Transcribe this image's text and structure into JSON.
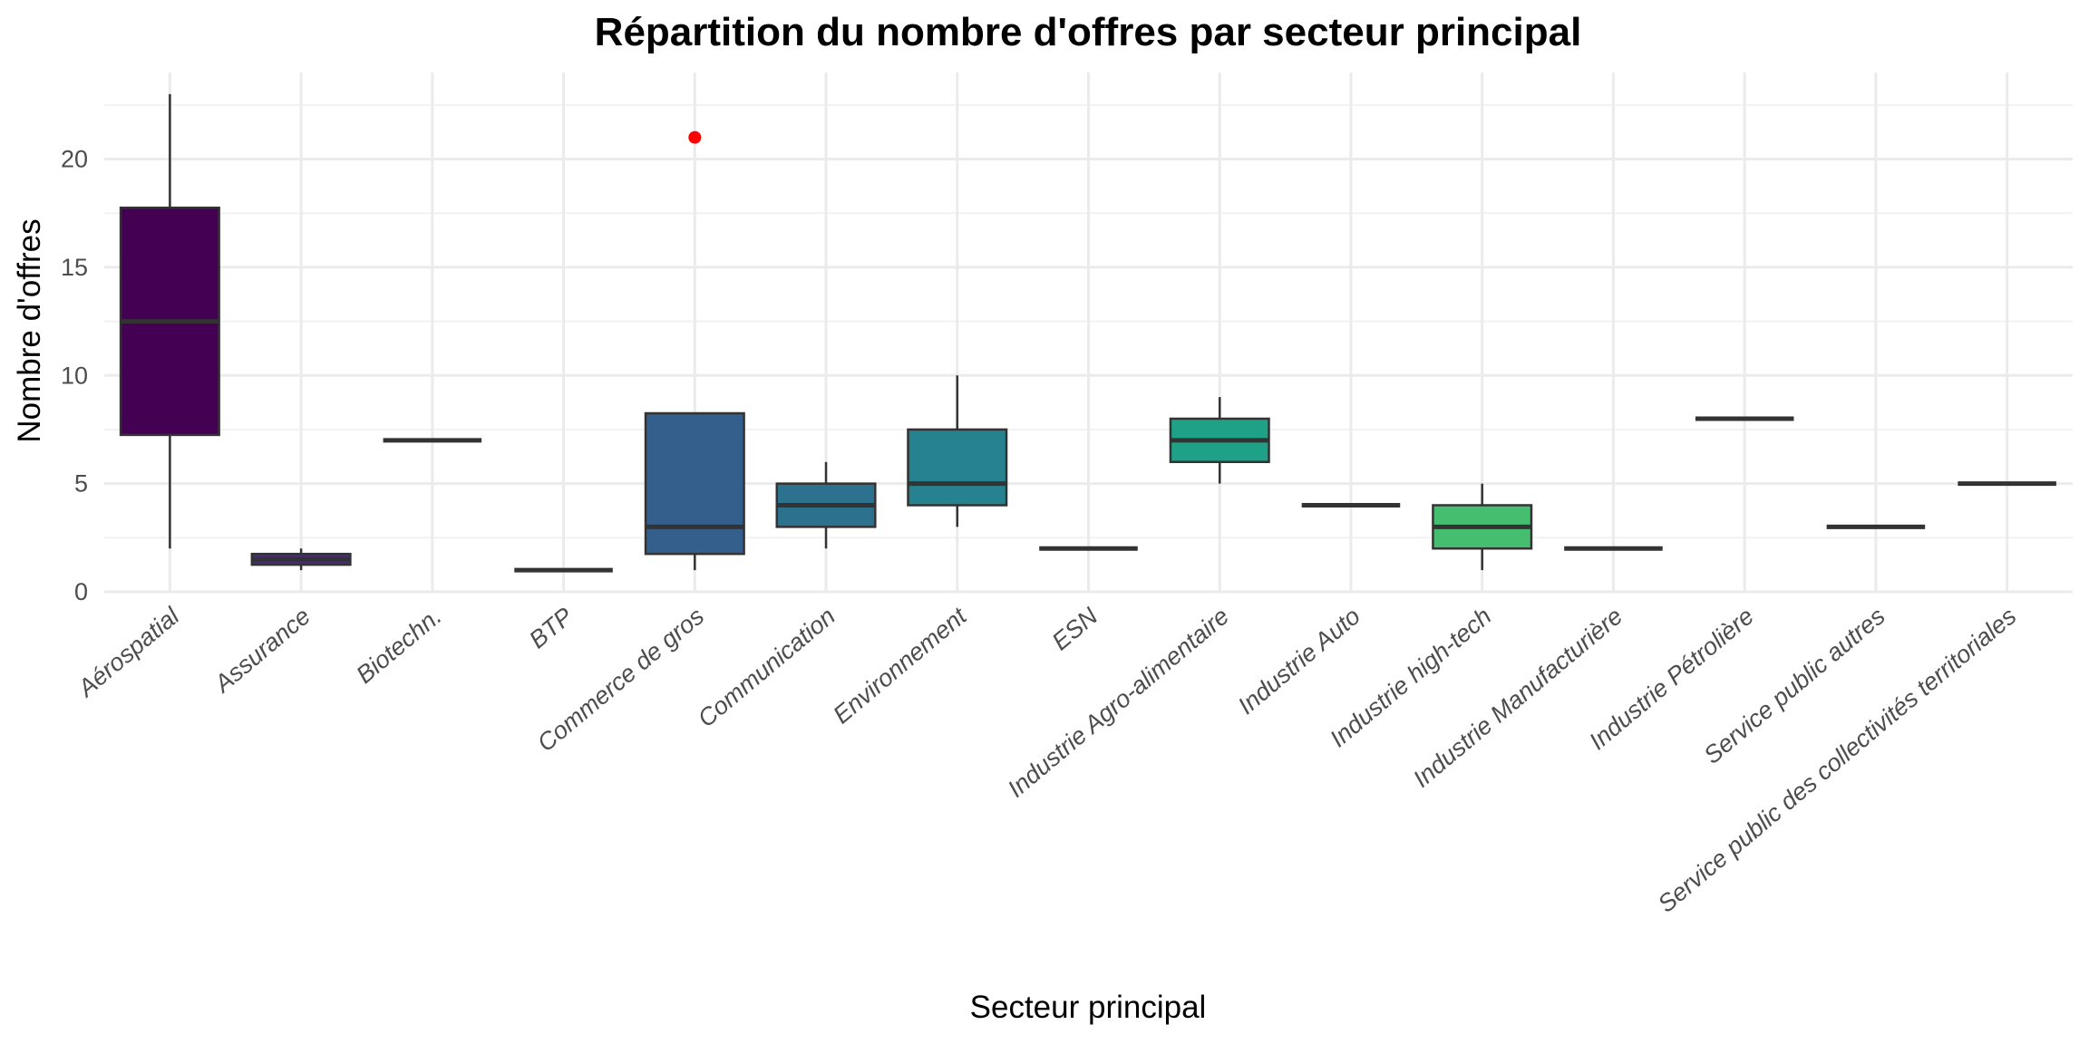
{
  "chart_data": {
    "type": "boxplot",
    "title": "Répartition du nombre d'offres par secteur principal",
    "xlabel": "Secteur principal",
    "ylabel": "Nombre d'offres",
    "ylim": [
      0,
      24
    ],
    "yticks": [
      0,
      5,
      10,
      15,
      20
    ],
    "grid": true,
    "legend": "none",
    "categories": [
      "Aérospatial",
      "Assurance",
      "Biotechn.",
      "BTP",
      "Commerce de gros",
      "Communication",
      "Environnement",
      "ESN",
      "Industrie Agro-alimentaire",
      "Industrie Auto",
      "Industrie high-tech",
      "Industrie Manufacturière",
      "Industrie Pétrolière",
      "Service public autres",
      "Service public des collectivités territoriales"
    ],
    "boxes": [
      {
        "category": "Aérospatial",
        "min": 2,
        "q1": 7.25,
        "median": 12.5,
        "q3": 17.75,
        "max": 23,
        "outliers": [],
        "color": "#440154"
      },
      {
        "category": "Assurance",
        "min": 1,
        "q1": 1.25,
        "median": 1.5,
        "q3": 1.75,
        "max": 2,
        "outliers": [],
        "color": "#472D7B"
      },
      {
        "category": "Biotechn.",
        "min": 7,
        "q1": 7,
        "median": 7,
        "q3": 7,
        "max": 7,
        "outliers": [],
        "color": "#3B528B"
      },
      {
        "category": "BTP",
        "min": 1,
        "q1": 1,
        "median": 1,
        "q3": 1,
        "max": 1,
        "outliers": [],
        "color": "#3B528B"
      },
      {
        "category": "Commerce de gros",
        "min": 1,
        "q1": 1.75,
        "median": 3,
        "q3": 8.25,
        "max": 8.25,
        "outliers": [
          21
        ],
        "color": "#345F8D"
      },
      {
        "category": "Communication",
        "min": 2,
        "q1": 3,
        "median": 4,
        "q3": 5,
        "max": 6,
        "outliers": [],
        "color": "#2C728E"
      },
      {
        "category": "Environnement",
        "min": 3,
        "q1": 4,
        "median": 5,
        "q3": 7.5,
        "max": 10,
        "outliers": [],
        "color": "#26828E"
      },
      {
        "category": "ESN",
        "min": 2,
        "q1": 2,
        "median": 2,
        "q3": 2,
        "max": 2,
        "outliers": [],
        "color": "#21908C"
      },
      {
        "category": "Industrie Agro-alimentaire",
        "min": 5,
        "q1": 6,
        "median": 7,
        "q3": 8,
        "max": 9,
        "outliers": [],
        "color": "#1FA187"
      },
      {
        "category": "Industrie Auto",
        "min": 4,
        "q1": 4,
        "median": 4,
        "q3": 4,
        "max": 4,
        "outliers": [],
        "color": "#28AE80"
      },
      {
        "category": "Industrie high-tech",
        "min": 1,
        "q1": 2,
        "median": 3,
        "q3": 4,
        "max": 5,
        "outliers": [],
        "color": "#45BF6F"
      },
      {
        "category": "Industrie Manufacturière",
        "min": 2,
        "q1": 2,
        "median": 2,
        "q3": 2,
        "max": 2,
        "outliers": [],
        "color": "#6DCD59"
      },
      {
        "category": "Industrie Pétrolière",
        "min": 8,
        "q1": 8,
        "median": 8,
        "q3": 8,
        "max": 8,
        "outliers": [],
        "color": "#9FDA3A"
      },
      {
        "category": "Service public autres",
        "min": 3,
        "q1": 3,
        "median": 3,
        "q3": 3,
        "max": 3,
        "outliers": [],
        "color": "#C7E020"
      },
      {
        "category": "Service public des collectivités territoriales",
        "min": 5,
        "q1": 5,
        "median": 5,
        "q3": 5,
        "max": 5,
        "outliers": [],
        "color": "#FDE725"
      }
    ],
    "outlier_color": "#FF0000"
  }
}
